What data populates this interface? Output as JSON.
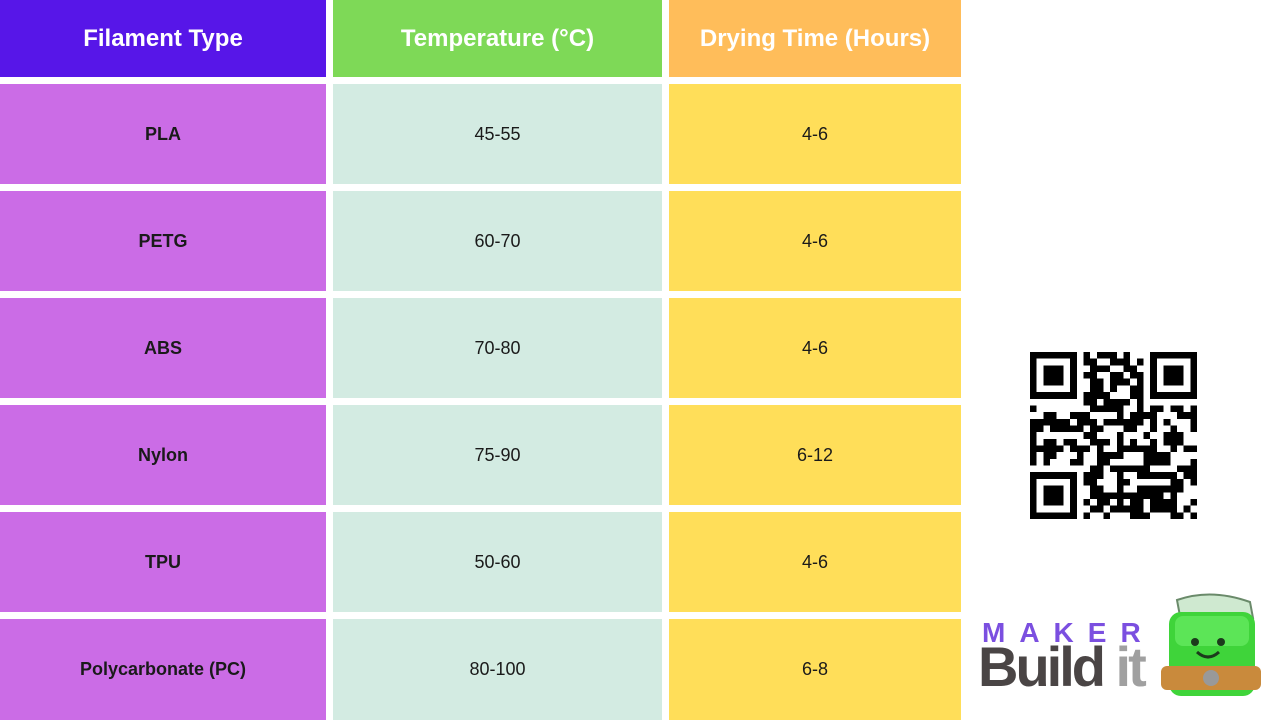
{
  "colors": {
    "header_type": "#5716e8",
    "header_temp": "#7ed957",
    "header_dry": "#ffbd5a",
    "col_type": "#cb6ce6",
    "col_temp": "#d3ebe2",
    "col_dry": "#ffde59"
  },
  "headers": [
    "Filament Type",
    "Temperature (°C)",
    "Drying Time (Hours)"
  ],
  "rows": [
    [
      "PLA",
      "45-55",
      "4-6"
    ],
    [
      "PETG",
      "60-70",
      "4-6"
    ],
    [
      "ABS",
      "70-80",
      "4-6"
    ],
    [
      "Nylon",
      "75-90",
      "6-12"
    ],
    [
      "TPU",
      "50-60",
      "4-6"
    ],
    [
      "Polycarbonate (PC)",
      "80-100",
      "6-8"
    ]
  ],
  "logo": {
    "maker": "MAKER",
    "build": "Build",
    "it": "it"
  },
  "qr_icon": "qr-code-icon"
}
